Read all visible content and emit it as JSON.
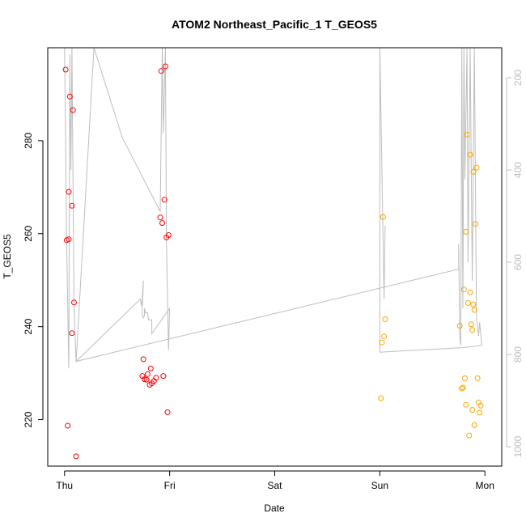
{
  "chart_data": {
    "type": "scatter",
    "title": "ATOM2 Northeast_Pacific_1 T_GEOS5",
    "xlabel": "Date",
    "ylabel": "T_GEOS5",
    "x_unit": "days",
    "x_ticks": [
      {
        "value": 0,
        "label": "Thu"
      },
      {
        "value": 1,
        "label": "Fri"
      },
      {
        "value": 2,
        "label": "Sat"
      },
      {
        "value": 3,
        "label": "Sun"
      },
      {
        "value": 4,
        "label": "Mon"
      }
    ],
    "xlim": [
      -0.16,
      4.16
    ],
    "ylim": [
      210,
      300
    ],
    "y_ticks": [
      220,
      240,
      260,
      280
    ],
    "right_axis": {
      "ticks": [
        200,
        400,
        600,
        800,
        1000
      ],
      "lim": [
        1042,
        135
      ],
      "reversed": true,
      "color": "#bdbdbd"
    },
    "colors": {
      "series_1": "#ff0000",
      "series_2": "#ffa500",
      "profile_line": "#bdbdbd",
      "frame": "#000000"
    },
    "series": [
      {
        "color": "#ff0000",
        "points": [
          [
            0.01,
            295.3
          ],
          [
            0.05,
            289.5
          ],
          [
            0.08,
            286.6
          ],
          [
            0.04,
            269.0
          ],
          [
            0.07,
            266.0
          ],
          [
            0.02,
            258.6
          ],
          [
            0.04,
            258.8
          ],
          [
            0.09,
            245.2
          ],
          [
            0.07,
            238.6
          ],
          [
            0.03,
            218.7
          ],
          [
            0.11,
            212.1
          ],
          [
            0.92,
            295.0
          ],
          [
            0.96,
            296.0
          ],
          [
            0.95,
            267.3
          ],
          [
            0.91,
            263.5
          ],
          [
            0.93,
            262.3
          ],
          [
            0.97,
            259.2
          ],
          [
            0.99,
            259.7
          ],
          [
            0.75,
            233.0
          ],
          [
            0.74,
            229.4
          ],
          [
            0.76,
            228.7
          ],
          [
            0.78,
            228.6
          ],
          [
            0.79,
            229.8
          ],
          [
            0.82,
            231.0
          ],
          [
            0.81,
            227.5
          ],
          [
            0.83,
            227.8
          ],
          [
            0.85,
            228.3
          ],
          [
            0.87,
            229.0
          ],
          [
            0.94,
            229.4
          ],
          [
            0.98,
            221.6
          ]
        ]
      },
      {
        "color": "#ffa500",
        "points": [
          [
            3.03,
            263.6
          ],
          [
            3.05,
            241.6
          ],
          [
            3.04,
            237.9
          ],
          [
            3.02,
            236.6
          ],
          [
            3.01,
            224.6
          ],
          [
            3.83,
            281.3
          ],
          [
            3.86,
            277.0
          ],
          [
            3.89,
            273.3
          ],
          [
            3.92,
            274.2
          ],
          [
            3.91,
            262.1
          ],
          [
            3.82,
            260.4
          ],
          [
            3.8,
            248.0
          ],
          [
            3.86,
            247.4
          ],
          [
            3.84,
            245.1
          ],
          [
            3.89,
            244.8
          ],
          [
            3.9,
            243.6
          ],
          [
            3.76,
            240.2
          ],
          [
            3.87,
            240.5
          ],
          [
            3.88,
            239.3
          ],
          [
            3.81,
            228.9
          ],
          [
            3.78,
            226.7
          ],
          [
            3.79,
            226.9
          ],
          [
            3.93,
            228.9
          ],
          [
            3.94,
            223.7
          ],
          [
            3.96,
            223.0
          ],
          [
            3.82,
            223.2
          ],
          [
            3.88,
            222.1
          ],
          [
            3.95,
            221.5
          ],
          [
            3.9,
            218.8
          ],
          [
            3.85,
            216.6
          ]
        ]
      }
    ],
    "profile_line": {
      "color": "#bdbdbd",
      "points": [
        [
          0.0,
          135
        ],
        [
          0.02,
          560
        ],
        [
          0.04,
          830
        ],
        [
          0.05,
          150
        ],
        [
          0.06,
          400
        ],
        [
          0.07,
          135
        ],
        [
          0.09,
          700
        ],
        [
          0.11,
          815
        ],
        [
          0.28,
          135
        ],
        [
          0.55,
          330
        ],
        [
          0.91,
          490
        ],
        [
          0.93,
          135
        ],
        [
          0.94,
          320
        ],
        [
          0.96,
          135
        ],
        [
          0.97,
          560
        ],
        [
          0.99,
          790
        ],
        [
          1.0,
          700
        ],
        [
          0.83,
          755
        ],
        [
          0.83,
          725
        ],
        [
          0.8,
          725
        ],
        [
          0.79,
          710
        ],
        [
          0.77,
          710
        ],
        [
          0.76,
          700
        ],
        [
          0.76,
          715
        ],
        [
          0.75,
          720
        ],
        [
          0.74,
          715
        ],
        [
          0.74,
          700
        ],
        [
          0.75,
          640
        ],
        [
          0.74,
          675
        ],
        [
          0.74,
          680
        ],
        [
          0.73,
          695
        ],
        [
          0.73,
          690
        ],
        [
          0.72,
          680
        ],
        [
          0.11,
          815
        ],
        [
          3.75,
          615
        ],
        [
          3.75,
          560
        ],
        [
          3.76,
          760
        ],
        [
          3.77,
          780
        ],
        [
          3.78,
          135
        ],
        [
          3.79,
          700
        ],
        [
          3.8,
          135
        ],
        [
          3.81,
          420
        ],
        [
          3.83,
          135
        ],
        [
          3.84,
          600
        ],
        [
          3.86,
          135
        ],
        [
          3.88,
          640
        ],
        [
          3.9,
          135
        ],
        [
          3.92,
          720
        ],
        [
          3.94,
          760
        ],
        [
          3.95,
          730
        ],
        [
          3.97,
          780
        ],
        [
          3.8,
          785
        ],
        [
          3.0,
          795
        ],
        [
          3.0,
          135
        ],
        [
          3.04,
          680
        ],
        [
          3.05,
          520
        ]
      ]
    }
  }
}
